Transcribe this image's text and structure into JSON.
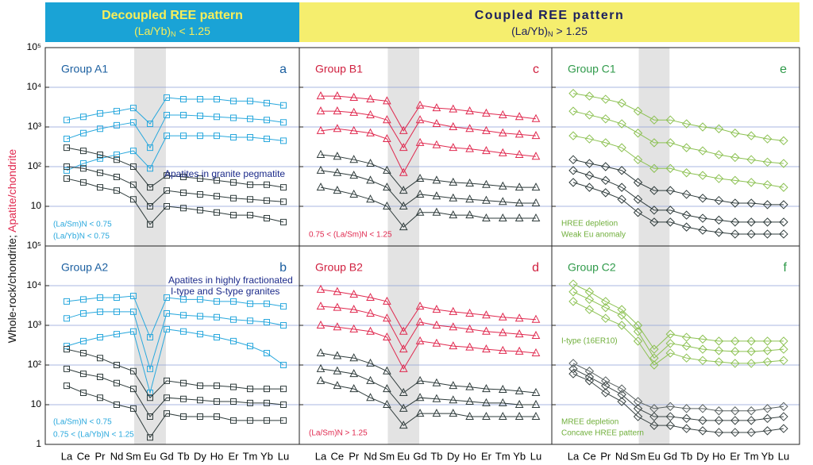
{
  "header": {
    "left_title": "Decoupled REE pattern",
    "left_ratio": "(La/Yb)",
    "left_sub": "N",
    "left_cond": "< 1.25",
    "right_title": "Coupled REE pattern",
    "right_ratio": "(La/Yb)",
    "right_sub": "N",
    "right_cond": "> 1.25"
  },
  "ylabel_rock": "Whole-rock/chondrite; ",
  "ylabel_apatite": "Apatite/chondrite",
  "chart_data": [
    {
      "type": "line",
      "title": "Group A1",
      "letter": "a",
      "log_y": true,
      "grid": true,
      "marker": "square",
      "show_yticklabels": true,
      "ylim": [
        1,
        100000
      ],
      "yticks": [
        10,
        {
          "value": 100,
          "label": "10²"
        },
        {
          "value": 1000,
          "label": "10³"
        },
        {
          "value": 10000,
          "label": "10⁴"
        },
        {
          "value": 100000,
          "label": "10⁵"
        }
      ],
      "annotations": [
        {
          "text": "Apatites in granite pegmatite",
          "color": "#1b2a8a"
        },
        {
          "text": "(La/Sm)N < 0.75",
          "color": "#29a8dd"
        },
        {
          "text": "(La/Yb)N < 0.75",
          "color": "#29a8dd"
        }
      ],
      "series": [
        {
          "color": "#29a8dd",
          "values": [
            1500,
            1800,
            2200,
            2500,
            3000,
            1200,
            5500,
            5000,
            5000,
            5000,
            4500,
            4500,
            4000,
            3500
          ]
        },
        {
          "color": "#29a8dd",
          "values": [
            500,
            700,
            900,
            1100,
            1300,
            300,
            2000,
            2000,
            1900,
            1800,
            1700,
            1600,
            1500,
            1300
          ]
        },
        {
          "color": "#29a8dd",
          "values": [
            80,
            120,
            160,
            200,
            250,
            90,
            600,
            600,
            600,
            600,
            550,
            550,
            500,
            450
          ]
        },
        {
          "color": "#2e3b3b",
          "values": [
            300,
            250,
            200,
            150,
            100,
            30,
            60,
            55,
            50,
            45,
            40,
            35,
            35,
            30
          ]
        },
        {
          "color": "#2e3b3b",
          "values": [
            100,
            90,
            70,
            55,
            35,
            10,
            25,
            22,
            20,
            18,
            16,
            15,
            14,
            13
          ]
        },
        {
          "color": "#2e3b3b",
          "values": [
            50,
            40,
            30,
            25,
            15,
            3.5,
            10,
            9,
            8,
            7,
            6,
            6,
            5,
            4
          ]
        }
      ]
    },
    {
      "type": "line",
      "title": "Group B1",
      "letter": "c",
      "log_y": true,
      "grid": true,
      "marker": "triangle",
      "show_yticklabels": false,
      "ylim": [
        1,
        100000
      ],
      "yticks": [
        10,
        {
          "value": 100,
          "label": "10²"
        },
        {
          "value": 1000,
          "label": "10³"
        },
        {
          "value": 10000,
          "label": "10⁴"
        },
        {
          "value": 100000,
          "label": "10⁵"
        }
      ],
      "annotations": [
        {
          "text": "0.75 < (La/Sm)N < 1.25",
          "color": "#e0294f"
        }
      ],
      "series": [
        {
          "color": "#e0294f",
          "values": [
            6000,
            6000,
            5500,
            5000,
            4500,
            800,
            3500,
            3000,
            2800,
            2500,
            2200,
            2000,
            1800,
            1600
          ]
        },
        {
          "color": "#e0294f",
          "values": [
            2500,
            2500,
            2300,
            2000,
            1500,
            300,
            1500,
            1200,
            1000,
            900,
            800,
            700,
            650,
            600
          ]
        },
        {
          "color": "#e0294f",
          "values": [
            800,
            900,
            800,
            700,
            500,
            70,
            400,
            350,
            300,
            280,
            250,
            220,
            200,
            180
          ]
        },
        {
          "color": "#2e3b3b",
          "values": [
            200,
            180,
            150,
            120,
            80,
            25,
            50,
            45,
            40,
            38,
            35,
            32,
            30,
            30
          ]
        },
        {
          "color": "#2e3b3b",
          "values": [
            80,
            70,
            60,
            45,
            30,
            10,
            20,
            18,
            16,
            15,
            14,
            13,
            12,
            12
          ]
        },
        {
          "color": "#2e3b3b",
          "values": [
            30,
            25,
            20,
            15,
            10,
            3,
            7,
            7,
            6,
            6,
            5,
            5,
            5,
            5
          ]
        }
      ]
    },
    {
      "type": "line",
      "title": "Group C1",
      "letter": "e",
      "log_y": true,
      "grid": true,
      "marker": "diamond",
      "show_yticklabels": false,
      "ylim": [
        1,
        100000
      ],
      "yticks": [
        10,
        {
          "value": 100,
          "label": "10²"
        },
        {
          "value": 1000,
          "label": "10³"
        },
        {
          "value": 10000,
          "label": "10⁴"
        },
        {
          "value": 100000,
          "label": "10⁵"
        }
      ],
      "annotations": [
        {
          "text": "HREE depletion",
          "color": "#6fae3a"
        },
        {
          "text": "Weak Eu anomaly",
          "color": "#6fae3a"
        }
      ],
      "series": [
        {
          "color": "#8cc152",
          "values": [
            7000,
            6000,
            5000,
            4000,
            2500,
            1500,
            1500,
            1200,
            1000,
            900,
            700,
            600,
            500,
            450
          ]
        },
        {
          "color": "#8cc152",
          "values": [
            2500,
            2000,
            1600,
            1200,
            700,
            400,
            400,
            300,
            250,
            200,
            170,
            150,
            130,
            120
          ]
        },
        {
          "color": "#8cc152",
          "values": [
            600,
            500,
            400,
            300,
            150,
            90,
            90,
            70,
            60,
            50,
            45,
            40,
            35,
            30
          ]
        },
        {
          "color": "#2e3b3b",
          "values": [
            150,
            120,
            100,
            80,
            40,
            25,
            25,
            20,
            16,
            14,
            12,
            12,
            11,
            11
          ]
        },
        {
          "color": "#2e3b3b",
          "values": [
            80,
            60,
            45,
            30,
            15,
            8,
            8,
            6,
            5,
            4.5,
            4,
            4,
            4,
            4
          ]
        },
        {
          "color": "#2e3b3b",
          "values": [
            40,
            30,
            22,
            15,
            7,
            4,
            4,
            3,
            2.5,
            2.2,
            2,
            2,
            2,
            2
          ]
        }
      ]
    },
    {
      "type": "line",
      "title": "Group A2",
      "letter": "b",
      "log_y": true,
      "grid": true,
      "marker": "square",
      "show_yticklabels": true,
      "categories": [
        "La",
        "Ce",
        "Pr",
        "Nd",
        "Sm",
        "Eu",
        "Gd",
        "Tb",
        "Dy",
        "Ho",
        "Er",
        "Tm",
        "Yb",
        "Lu"
      ],
      "ylim": [
        1,
        100000
      ],
      "yticks": [
        1,
        10,
        {
          "value": 100,
          "label": "10²"
        },
        {
          "value": 1000,
          "label": "10³"
        },
        {
          "value": 10000,
          "label": "10⁴"
        },
        {
          "value": 100000,
          "label": "10⁵"
        }
      ],
      "annotations": [
        {
          "text": "Apatites in highly fractionated",
          "color": "#1b2a8a"
        },
        {
          "text": "I-type and S-type granites",
          "color": "#1b2a8a"
        },
        {
          "text": "(La/Sm)N < 0.75",
          "color": "#29a8dd"
        },
        {
          "text": "0.75 < (La/Yb)N < 1.25",
          "color": "#29a8dd"
        }
      ],
      "series": [
        {
          "color": "#29a8dd",
          "values": [
            4000,
            4500,
            5000,
            5000,
            5500,
            500,
            5000,
            4500,
            4500,
            4000,
            4000,
            3500,
            3500,
            3000
          ]
        },
        {
          "color": "#29a8dd",
          "values": [
            1500,
            2000,
            2200,
            2200,
            2200,
            80,
            2000,
            1800,
            1700,
            1600,
            1400,
            1300,
            1200,
            1000
          ]
        },
        {
          "color": "#29a8dd",
          "values": [
            300,
            400,
            500,
            600,
            700,
            20,
            800,
            700,
            600,
            500,
            400,
            300,
            200,
            100
          ]
        },
        {
          "color": "#2e3b3b",
          "values": [
            250,
            200,
            150,
            100,
            70,
            15,
            40,
            35,
            30,
            30,
            28,
            25,
            25,
            25
          ]
        },
        {
          "color": "#2e3b3b",
          "values": [
            80,
            60,
            50,
            35,
            25,
            5,
            15,
            14,
            13,
            12,
            12,
            11,
            11,
            10
          ]
        },
        {
          "color": "#2e3b3b",
          "values": [
            30,
            20,
            15,
            10,
            8,
            1.5,
            6,
            5,
            5,
            5,
            4,
            4,
            4,
            4
          ]
        }
      ]
    },
    {
      "type": "line",
      "title": "Group B2",
      "letter": "d",
      "log_y": true,
      "grid": true,
      "marker": "triangle",
      "show_yticklabels": false,
      "categories": [
        "La",
        "Ce",
        "Pr",
        "Nd",
        "Sm",
        "Eu",
        "Gd",
        "Tb",
        "Dy",
        "Ho",
        "Er",
        "Tm",
        "Yb",
        "Lu"
      ],
      "ylim": [
        1,
        100000
      ],
      "yticks": [
        1,
        10,
        {
          "value": 100,
          "label": "10²"
        },
        {
          "value": 1000,
          "label": "10³"
        },
        {
          "value": 10000,
          "label": "10⁴"
        },
        {
          "value": 100000,
          "label": "10⁵"
        }
      ],
      "annotations": [
        {
          "text": "(La/Sm)N > 1.25",
          "color": "#e0294f"
        }
      ],
      "series": [
        {
          "color": "#e0294f",
          "values": [
            8000,
            7000,
            6000,
            5000,
            4000,
            700,
            3000,
            2500,
            2200,
            2000,
            1800,
            1600,
            1500,
            1400
          ]
        },
        {
          "color": "#e0294f",
          "values": [
            3000,
            2800,
            2500,
            2000,
            1500,
            250,
            1200,
            1000,
            900,
            800,
            700,
            650,
            600,
            550
          ]
        },
        {
          "color": "#e0294f",
          "values": [
            1000,
            900,
            800,
            700,
            500,
            80,
            400,
            350,
            300,
            280,
            250,
            230,
            220,
            200
          ]
        },
        {
          "color": "#2e3b3b",
          "values": [
            200,
            170,
            150,
            110,
            70,
            20,
            40,
            35,
            30,
            28,
            25,
            24,
            22,
            20
          ]
        },
        {
          "color": "#2e3b3b",
          "values": [
            80,
            70,
            60,
            40,
            25,
            8,
            15,
            14,
            13,
            12,
            11,
            11,
            10,
            10
          ]
        },
        {
          "color": "#2e3b3b",
          "values": [
            40,
            30,
            25,
            15,
            10,
            3,
            6,
            6,
            6,
            5,
            5,
            5,
            5,
            5
          ]
        }
      ]
    },
    {
      "type": "line",
      "title": "Group C2",
      "letter": "f",
      "log_y": true,
      "grid": true,
      "marker": "diamond",
      "show_yticklabels": false,
      "categories": [
        "La",
        "Ce",
        "Pr",
        "Nd",
        "Sm",
        "Eu",
        "Gd",
        "Tb",
        "Dy",
        "Ho",
        "Er",
        "Tm",
        "Yb",
        "Lu"
      ],
      "ylim": [
        1,
        100000
      ],
      "yticks": [
        1,
        10,
        {
          "value": 100,
          "label": "10²"
        },
        {
          "value": 1000,
          "label": "10³"
        },
        {
          "value": 10000,
          "label": "10⁴"
        },
        {
          "value": 100000,
          "label": "10⁵"
        }
      ],
      "annotations": [
        {
          "text": "I-type (16ER10)",
          "color": "#6fae3a"
        },
        {
          "text": "MREE depletion",
          "color": "#6fae3a"
        },
        {
          "text": "Concave HREE pattern",
          "color": "#6fae3a"
        }
      ],
      "series": [
        {
          "color": "#8cc152",
          "values": [
            11000,
            7000,
            4000,
            2500,
            1000,
            250,
            600,
            500,
            450,
            400,
            400,
            400,
            400,
            400
          ]
        },
        {
          "color": "#8cc152",
          "values": [
            7000,
            4500,
            2800,
            1800,
            700,
            150,
            350,
            300,
            250,
            230,
            220,
            220,
            230,
            250
          ]
        },
        {
          "color": "#8cc152",
          "values": [
            4000,
            2500,
            1500,
            1000,
            400,
            100,
            200,
            150,
            130,
            120,
            110,
            110,
            120,
            130
          ]
        },
        {
          "color": "#5a6262",
          "values": [
            110,
            70,
            40,
            25,
            12,
            8,
            9,
            8,
            8,
            7,
            7,
            7,
            8,
            9
          ]
        },
        {
          "color": "#3a4444",
          "values": [
            80,
            50,
            30,
            18,
            8,
            5,
            5,
            4.5,
            4,
            4,
            4,
            4,
            4.5,
            5
          ]
        },
        {
          "color": "#3a4444",
          "values": [
            60,
            40,
            20,
            12,
            5,
            3,
            3,
            2.5,
            2.2,
            2,
            2,
            2,
            2.2,
            2.5
          ]
        }
      ]
    }
  ]
}
